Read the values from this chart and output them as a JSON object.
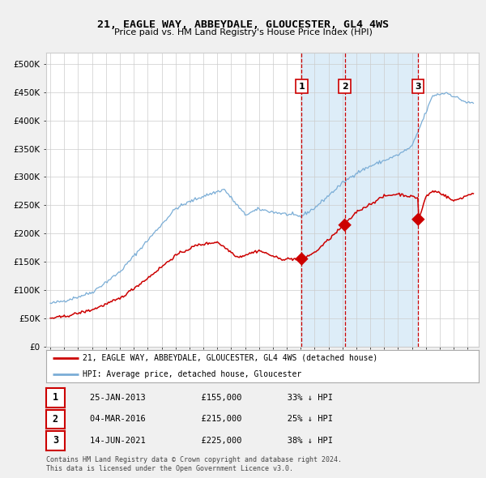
{
  "title": "21, EAGLE WAY, ABBEYDALE, GLOUCESTER, GL4 4WS",
  "subtitle": "Price paid vs. HM Land Registry's House Price Index (HPI)",
  "legend_line1": "21, EAGLE WAY, ABBEYDALE, GLOUCESTER, GL4 4WS (detached house)",
  "legend_line2": "HPI: Average price, detached house, Gloucester",
  "footer1": "Contains HM Land Registry data © Crown copyright and database right 2024.",
  "footer2": "This data is licensed under the Open Government Licence v3.0.",
  "transactions": [
    {
      "label": "1",
      "date": "25-JAN-2013",
      "price": 155000,
      "pct": "33%",
      "dir": "↓",
      "x": 2013.07
    },
    {
      "label": "2",
      "date": "04-MAR-2016",
      "price": 215000,
      "pct": "25%",
      "dir": "↓",
      "x": 2016.17
    },
    {
      "label": "3",
      "date": "14-JUN-2021",
      "price": 225000,
      "pct": "38%",
      "dir": "↓",
      "x": 2021.45
    }
  ],
  "hpi_color": "#7aadd6",
  "price_color": "#cc0000",
  "marker_color": "#cc0000",
  "vline_color": "#cc0000",
  "shade_color": "#d8eaf7",
  "grid_color": "#cccccc",
  "bg_color": "#f0f0f0",
  "plot_bg_color": "#ffffff",
  "ylim": [
    0,
    520000
  ],
  "xlim_start": 1994.7,
  "xlim_end": 2025.8,
  "yticks": [
    0,
    50000,
    100000,
    150000,
    200000,
    250000,
    300000,
    350000,
    400000,
    450000,
    500000
  ],
  "ylabels": [
    "£0",
    "£50K",
    "£100K",
    "£150K",
    "£200K",
    "£250K",
    "£300K",
    "£350K",
    "£400K",
    "£450K",
    "£500K"
  ],
  "xticks": [
    1995,
    1996,
    1997,
    1998,
    1999,
    2000,
    2001,
    2002,
    2003,
    2004,
    2005,
    2006,
    2007,
    2008,
    2009,
    2010,
    2011,
    2012,
    2013,
    2014,
    2015,
    2016,
    2017,
    2018,
    2019,
    2020,
    2021,
    2022,
    2023,
    2024,
    2025
  ]
}
